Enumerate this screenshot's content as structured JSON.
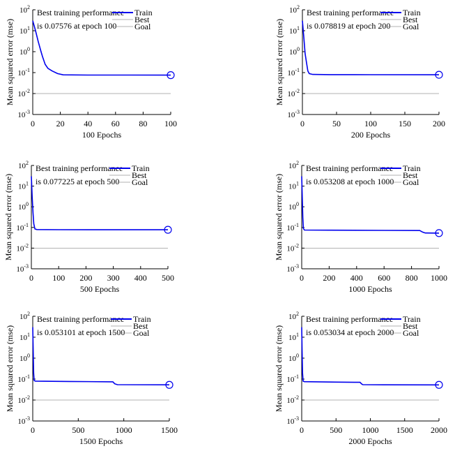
{
  "chart_data": [
    {
      "type": "line",
      "title": "",
      "annotation": [
        "Best training performance",
        "is 0.07576 at epoch 100"
      ],
      "xlabel": "100 Epochs",
      "ylabel": "Mean squared error (mse)",
      "xlim": [
        0,
        100
      ],
      "ylim_log10": [
        -3,
        2
      ],
      "yscale": "log",
      "xticks": [
        0,
        20,
        40,
        60,
        80,
        100
      ],
      "yticks_exp": [
        2,
        1,
        0,
        -1,
        -2,
        -3
      ],
      "legend": [
        "Train",
        "Best",
        "Goal"
      ],
      "legend_position": "top-right",
      "grid": false,
      "goal": 0.01,
      "best_point": {
        "epoch": 100,
        "value": 0.07576
      },
      "series": [
        {
          "name": "Train",
          "color": "#0000ee",
          "points": [
            [
              0,
              30
            ],
            [
              2,
              10
            ],
            [
              4,
              3
            ],
            [
              6,
              1
            ],
            [
              7,
              0.6
            ],
            [
              9,
              0.25
            ],
            [
              11,
              0.16
            ],
            [
              14,
              0.12
            ],
            [
              18,
              0.09
            ],
            [
              22,
              0.078
            ],
            [
              40,
              0.0765
            ],
            [
              70,
              0.0762
            ],
            [
              100,
              0.07576
            ]
          ]
        }
      ]
    },
    {
      "type": "line",
      "title": "",
      "annotation": [
        "Best training performance",
        "is 0.078819 at epoch 200"
      ],
      "xlabel": "200 Epochs",
      "ylabel": "Mean squared error (mse)",
      "xlim": [
        0,
        200
      ],
      "ylim_log10": [
        -3,
        2
      ],
      "yscale": "log",
      "xticks": [
        0,
        50,
        100,
        150,
        200
      ],
      "yticks_exp": [
        2,
        1,
        0,
        -1,
        -2,
        -3
      ],
      "legend": [
        "Train",
        "Best",
        "Goal"
      ],
      "legend_position": "top-right",
      "grid": false,
      "goal": 0.01,
      "best_point": {
        "epoch": 200,
        "value": 0.078819
      },
      "series": [
        {
          "name": "Train",
          "color": "#0000ee",
          "points": [
            [
              0,
              30
            ],
            [
              2,
              5
            ],
            [
              4,
              0.8
            ],
            [
              6,
              0.3
            ],
            [
              8,
              0.12
            ],
            [
              10,
              0.09
            ],
            [
              15,
              0.082
            ],
            [
              40,
              0.08
            ],
            [
              100,
              0.0795
            ],
            [
              200,
              0.078819
            ]
          ]
        }
      ]
    },
    {
      "type": "line",
      "title": "",
      "annotation": [
        "Best training performance",
        "is 0.077225 at epoch 500"
      ],
      "xlabel": "500 Epochs",
      "ylabel": "Mean squared error (mse)",
      "xlim": [
        0,
        500
      ],
      "ylim_log10": [
        -3,
        2
      ],
      "yscale": "log",
      "xticks": [
        0,
        100,
        200,
        300,
        400,
        500
      ],
      "yticks_exp": [
        2,
        1,
        0,
        -1,
        -2,
        -3
      ],
      "legend": [
        "Train",
        "Best",
        "Goal"
      ],
      "legend_position": "top-right",
      "grid": false,
      "goal": 0.01,
      "best_point": {
        "epoch": 500,
        "value": 0.077225
      },
      "series": [
        {
          "name": "Train",
          "color": "#0000ee",
          "points": [
            [
              0,
              30
            ],
            [
              3,
              3
            ],
            [
              6,
              0.5
            ],
            [
              9,
              0.15
            ],
            [
              13,
              0.085
            ],
            [
              20,
              0.079
            ],
            [
              100,
              0.078
            ],
            [
              300,
              0.0775
            ],
            [
              500,
              0.077225
            ]
          ]
        }
      ]
    },
    {
      "type": "line",
      "title": "",
      "annotation": [
        "Best training performance",
        "is 0.053208 at epoch 1000"
      ],
      "xlabel": "1000 Epochs",
      "ylabel": "Mean squared error (mse)",
      "xlim": [
        0,
        1000
      ],
      "ylim_log10": [
        -3,
        2
      ],
      "yscale": "log",
      "xticks": [
        0,
        200,
        400,
        600,
        800,
        1000
      ],
      "yticks_exp": [
        2,
        1,
        0,
        -1,
        -2,
        -3
      ],
      "legend": [
        "Train",
        "Best",
        "Goal"
      ],
      "legend_position": "top-right",
      "grid": false,
      "goal": 0.01,
      "best_point": {
        "epoch": 1000,
        "value": 0.053208
      },
      "series": [
        {
          "name": "Train",
          "color": "#0000ee",
          "points": [
            [
              0,
              30
            ],
            [
              4,
              3
            ],
            [
              8,
              0.3
            ],
            [
              12,
              0.09
            ],
            [
              20,
              0.075
            ],
            [
              200,
              0.074
            ],
            [
              600,
              0.072
            ],
            [
              860,
              0.071
            ],
            [
              880,
              0.06
            ],
            [
              900,
              0.054
            ],
            [
              1000,
              0.053208
            ]
          ]
        }
      ]
    },
    {
      "type": "line",
      "title": "",
      "annotation": [
        "Best training performance",
        "is 0.053101 at epoch 1500"
      ],
      "xlabel": "1500 Epochs",
      "ylabel": "Mean squared error (mse)",
      "xlim": [
        0,
        1500
      ],
      "ylim_log10": [
        -3,
        2
      ],
      "yscale": "log",
      "xticks": [
        0,
        500,
        1000,
        1500
      ],
      "yticks_exp": [
        2,
        1,
        0,
        -1,
        -2,
        -3
      ],
      "legend": [
        "Train",
        "Best",
        "Goal"
      ],
      "legend_position": "top-right",
      "grid": false,
      "goal": 0.01,
      "best_point": {
        "epoch": 1500,
        "value": 0.053101
      },
      "series": [
        {
          "name": "Train",
          "color": "#0000ee",
          "points": [
            [
              0,
              30
            ],
            [
              5,
              2
            ],
            [
              10,
              0.2
            ],
            [
              15,
              0.085
            ],
            [
              30,
              0.08
            ],
            [
              400,
              0.077
            ],
            [
              880,
              0.074
            ],
            [
              900,
              0.06
            ],
            [
              930,
              0.054
            ],
            [
              1500,
              0.053101
            ]
          ]
        }
      ]
    },
    {
      "type": "line",
      "title": "",
      "annotation": [
        "Best training performance",
        "is 0.053034 at epoch 2000"
      ],
      "xlabel": "2000 Epochs",
      "ylabel": "Mean squared error (mse)",
      "xlim": [
        0,
        2000
      ],
      "ylim_log10": [
        -3,
        2
      ],
      "yscale": "log",
      "xticks": [
        0,
        500,
        1000,
        1500,
        2000
      ],
      "yticks_exp": [
        2,
        1,
        0,
        -1,
        -2,
        -3
      ],
      "legend": [
        "Train",
        "Best",
        "Goal"
      ],
      "legend_position": "top-right",
      "grid": false,
      "goal": 0.01,
      "best_point": {
        "epoch": 2000,
        "value": 0.053034
      },
      "series": [
        {
          "name": "Train",
          "color": "#0000ee",
          "points": [
            [
              0,
              30
            ],
            [
              6,
              2
            ],
            [
              12,
              0.2
            ],
            [
              20,
              0.08
            ],
            [
              40,
              0.075
            ],
            [
              500,
              0.072
            ],
            [
              850,
              0.07
            ],
            [
              870,
              0.06
            ],
            [
              890,
              0.054
            ],
            [
              1200,
              0.0532
            ],
            [
              2000,
              0.053034
            ]
          ]
        }
      ]
    }
  ],
  "style": {
    "train_color": "#0000ee",
    "goal_color": "#999999",
    "best_color": "#999999",
    "axis_color": "#000000"
  }
}
